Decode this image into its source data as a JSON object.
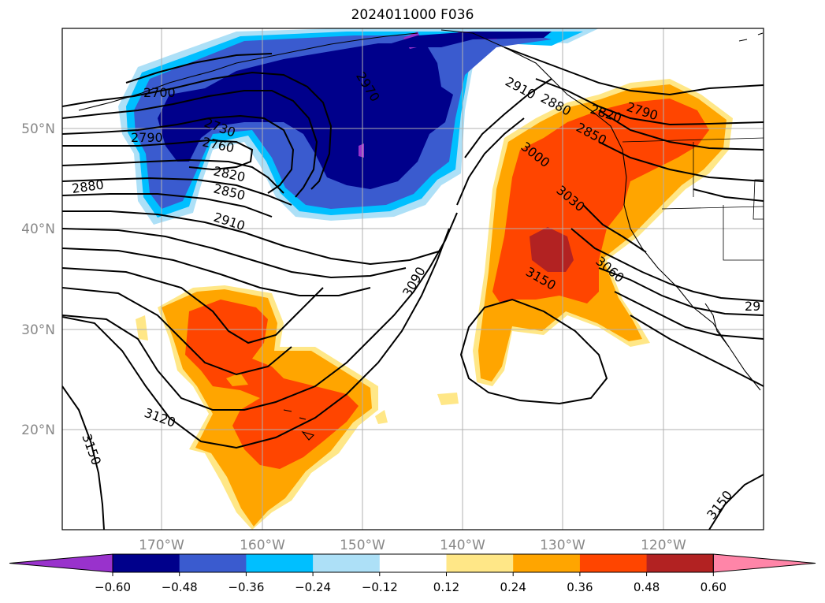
{
  "title": "2024011000 F036",
  "axes": {
    "lon_ticks": [
      "170°W",
      "160°W",
      "150°W",
      "140°W",
      "130°W",
      "120°W"
    ],
    "lat_ticks": [
      "50°N",
      "40°N",
      "30°N",
      "20°N"
    ]
  },
  "colorbar": {
    "ticks": [
      "−0.60",
      "−0.48",
      "−0.36",
      "−0.24",
      "−0.12",
      "0.12",
      "0.24",
      "0.36",
      "0.48",
      "0.60"
    ],
    "levels": [
      -0.6,
      -0.48,
      -0.36,
      -0.24,
      -0.12,
      0.12,
      0.24,
      0.36,
      0.48,
      0.6
    ],
    "colors": [
      "#9932CC",
      "#00008B",
      "#3A5BCF",
      "#00BFFF",
      "#ADE0F7",
      "#FFFFFF",
      "#FFE787",
      "#FFA500",
      "#FF4500",
      "#B22222",
      "#FF85A8"
    ]
  },
  "contour_labels": [
    "2700",
    "2970",
    "2910",
    "2880",
    "2820",
    "2790",
    "2850",
    "2730",
    "2760",
    "2790",
    "2880",
    "2820",
    "2850",
    "2910",
    "3000",
    "3030",
    "3060",
    "3090",
    "3150",
    "3120",
    "3150",
    "3150",
    "29"
  ],
  "colors": {
    "grid": "#b0b0b0",
    "axis_label": "#888888"
  }
}
